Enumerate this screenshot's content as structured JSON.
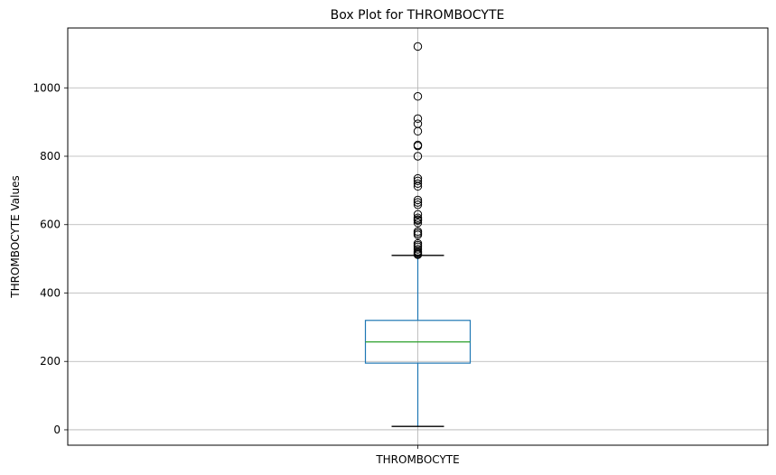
{
  "chart_data": {
    "type": "box",
    "title": "Box Plot for THROMBOCYTE",
    "xlabel": "",
    "ylabel": "THROMBOCYTE Values",
    "categories": [
      "THROMBOCYTE"
    ],
    "ylim": [
      -45,
      1175
    ],
    "yticks": [
      0,
      200,
      400,
      600,
      800,
      1000
    ],
    "grid": true,
    "box": {
      "whisker_low": 10,
      "q1": 195,
      "median": 257,
      "q3": 320,
      "whisker_high": 510
    },
    "outliers": [
      1121,
      975,
      910,
      895,
      873,
      833,
      830,
      800,
      735,
      728,
      720,
      712,
      672,
      665,
      658,
      630,
      620,
      615,
      612,
      605,
      580,
      575,
      570,
      545,
      540,
      535,
      528,
      522,
      518,
      515,
      512
    ],
    "colors": {
      "box": "#1f77b4",
      "median": "#2ca02c",
      "whisker_cap": "#000000",
      "grid": "#b0b0b0"
    }
  }
}
